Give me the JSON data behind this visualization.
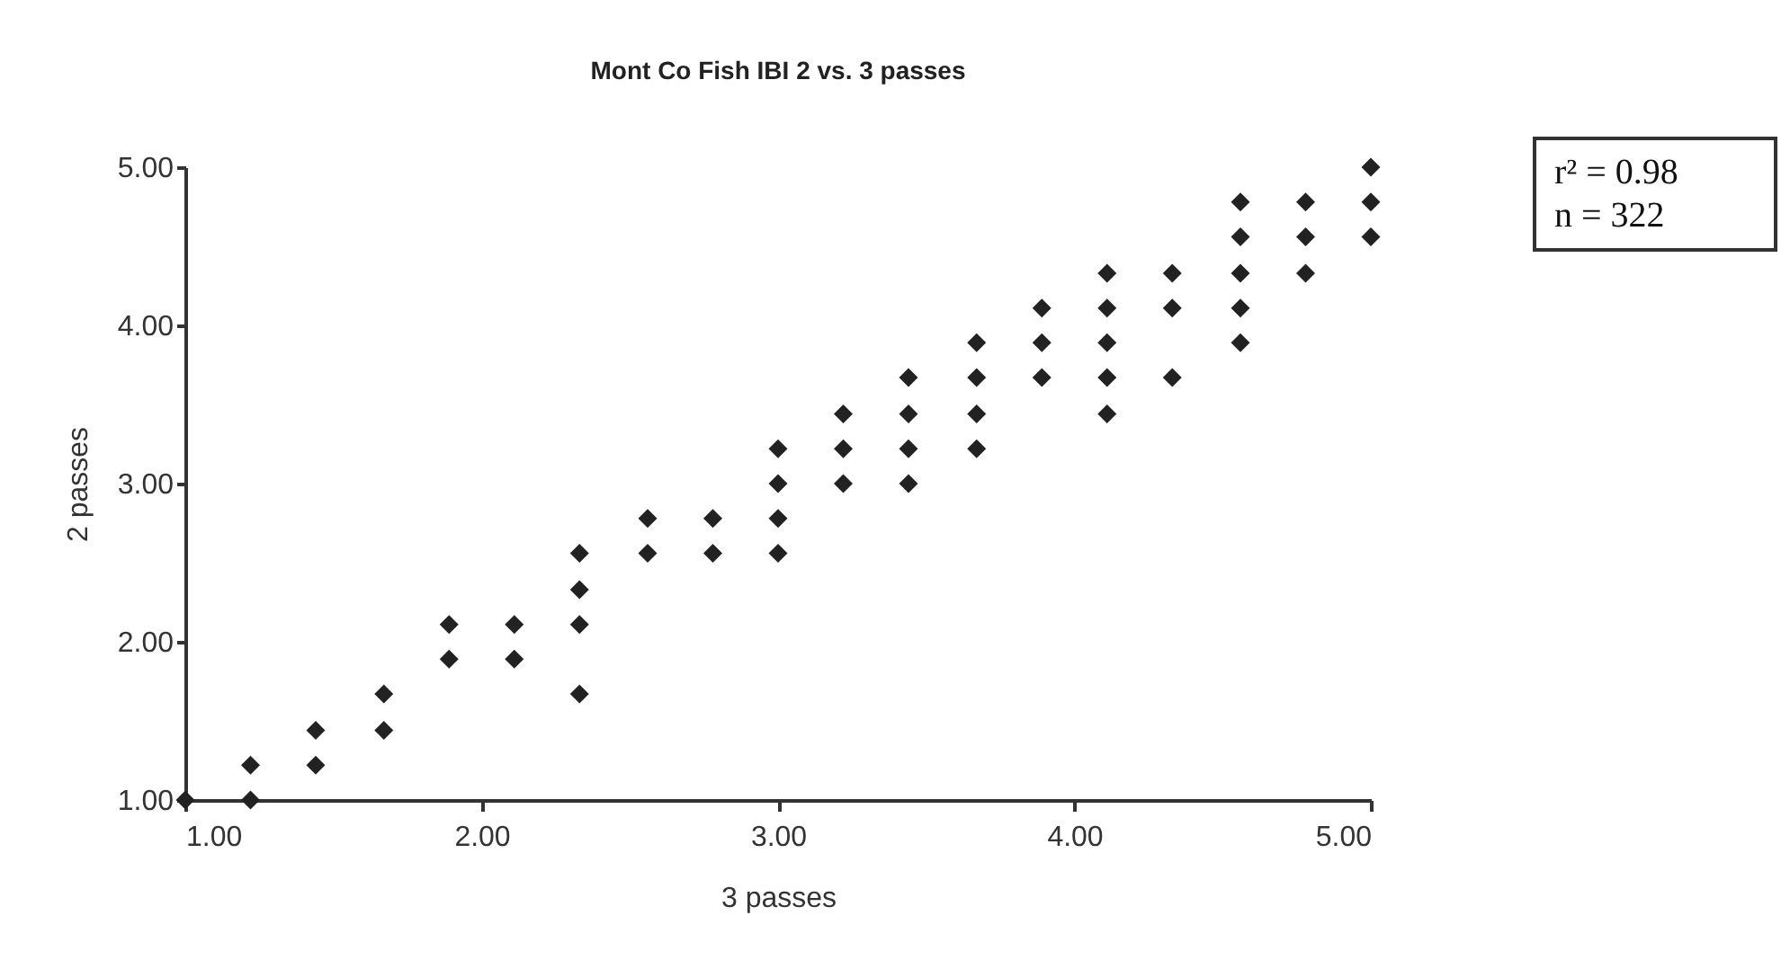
{
  "chart_data": {
    "type": "scatter",
    "title": "Mont Co Fish IBI 2 vs. 3 passes",
    "xlabel": "3 passes",
    "ylabel": "2 passes",
    "annotations": [
      "r² = 0.98",
      "n = 322"
    ],
    "xlim": [
      1,
      5
    ],
    "ylim": [
      1,
      5
    ],
    "xticks": [
      {
        "value": 1,
        "label": "1.00"
      },
      {
        "value": 2,
        "label": "2.00"
      },
      {
        "value": 3,
        "label": "3.00"
      },
      {
        "value": 4,
        "label": "4.00"
      },
      {
        "value": 5,
        "label": "5.00"
      }
    ],
    "yticks": [
      {
        "value": 1,
        "label": "1.00"
      },
      {
        "value": 2,
        "label": "2.00"
      },
      {
        "value": 3,
        "label": "3.00"
      },
      {
        "value": 4,
        "label": "4.00"
      },
      {
        "value": 5,
        "label": "5.00"
      }
    ],
    "grid": false,
    "legend": false,
    "marker": "diamond",
    "series": [
      {
        "color": "#222222",
        "x": [
          1.0,
          1.22,
          1.22,
          1.44,
          1.44,
          1.67,
          1.67,
          1.89,
          1.89,
          2.11,
          2.11,
          2.33,
          2.33,
          2.33,
          2.33,
          2.56,
          2.56,
          2.78,
          2.78,
          3.0,
          3.0,
          3.0,
          3.0,
          3.22,
          3.22,
          3.22,
          3.44,
          3.44,
          3.44,
          3.44,
          3.67,
          3.67,
          3.67,
          3.67,
          3.89,
          3.89,
          3.89,
          4.11,
          4.11,
          4.11,
          4.11,
          4.11,
          4.33,
          4.33,
          4.33,
          4.56,
          4.56,
          4.56,
          4.56,
          4.56,
          4.78,
          4.78,
          4.78,
          5.0,
          5.0,
          5.0
        ],
        "values": [
          1.0,
          1.22,
          1.0,
          1.44,
          1.22,
          1.67,
          1.44,
          2.11,
          1.89,
          2.11,
          1.89,
          2.56,
          2.33,
          2.11,
          1.67,
          2.78,
          2.56,
          2.78,
          2.56,
          3.22,
          3.0,
          2.78,
          2.56,
          3.44,
          3.22,
          3.0,
          3.67,
          3.44,
          3.22,
          3.0,
          3.89,
          3.67,
          3.44,
          3.22,
          4.11,
          3.89,
          3.67,
          4.33,
          4.11,
          3.89,
          3.67,
          3.44,
          4.33,
          4.11,
          3.67,
          4.78,
          4.56,
          4.33,
          4.11,
          3.89,
          4.78,
          4.56,
          4.33,
          5.0,
          4.78,
          4.56
        ]
      }
    ]
  }
}
